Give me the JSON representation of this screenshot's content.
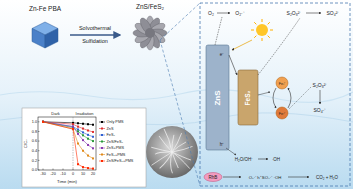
{
  "diagram": {
    "precursor": {
      "label": "Zn-Fe PBA"
    },
    "process": {
      "label_lines": [
        "Solvothermal",
        "Sulfidation"
      ]
    },
    "product": {
      "label": "ZnS/FeS₂"
    },
    "mechanism": {
      "zns": "ZnS",
      "fes2": "FeS₂",
      "o2": "O₂",
      "o2rad": "O₂·⁻",
      "s2o8_top": "S₂O₈²⁻",
      "so4_top": "SO₄²⁻",
      "e": "e⁻",
      "h": "h⁺",
      "fe3": "Fe³⁺",
      "fe2": "Fe²⁺",
      "s2o8_mid": "S₂O₈²⁻",
      "so4rad": "SO₄·⁻",
      "h2o": "H₂O/OH⁻",
      "oh": "·OH",
      "rhb": "RhB",
      "species": "O₂·⁻  h⁺  SO₄·⁻  ·OH",
      "products": "CO₂ + H₂O"
    }
  },
  "chart_data": {
    "type": "line",
    "x_label": "Time (min)",
    "y_label": "C/C₀",
    "annotations": [
      "Dark",
      "Irradiation"
    ],
    "light_on": 0,
    "x": [
      -30,
      0,
      5,
      10,
      15,
      20
    ],
    "xlim": [
      -35,
      23
    ],
    "xticks": [
      -30,
      -20,
      -10,
      0,
      10,
      20
    ],
    "ylim": [
      0,
      1.1
    ],
    "yticks": [
      {
        "value": 0,
        "label": "0.0"
      },
      0.2,
      0.4,
      0.6,
      0.8,
      {
        "value": 1,
        "label": "1.0"
      }
    ],
    "legend": "right",
    "marker": "square",
    "series": [
      {
        "name": "Only PMS",
        "color": "#000000",
        "values": [
          1,
          0.98,
          0.97,
          0.96,
          0.95,
          0.94
        ]
      },
      {
        "name": "ZnS",
        "color": "#e03030",
        "values": [
          1,
          0.95,
          0.9,
          0.86,
          0.82,
          0.79
        ]
      },
      {
        "name": "FeS₂",
        "color": "#2f5fd0",
        "values": [
          1,
          0.9,
          0.84,
          0.78,
          0.73,
          0.69
        ]
      },
      {
        "name": "ZnS/FeS₂",
        "color": "#2a9a3a",
        "values": [
          1,
          0.88,
          0.8,
          0.72,
          0.65,
          0.6
        ]
      },
      {
        "name": "ZnS+PMS",
        "color": "#8a3ab0",
        "values": [
          1,
          0.9,
          0.75,
          0.62,
          0.52,
          0.45
        ]
      },
      {
        "name": "FeS₂+PMS",
        "color": "#e08a1a",
        "values": [
          1,
          0.85,
          0.55,
          0.4,
          0.3,
          0.24
        ]
      },
      {
        "name": "ZnS/FeS₂+PMS",
        "color": "#ff2a00",
        "values": [
          1,
          0.85,
          0.12,
          0.06,
          0.04,
          0.03
        ]
      }
    ]
  }
}
